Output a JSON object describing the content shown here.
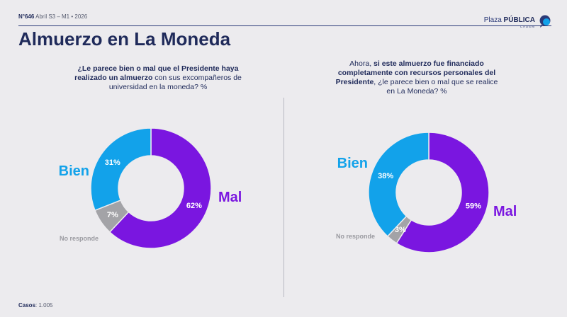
{
  "header": {
    "issue": "N°646",
    "period": "Abril S3 – M1 • 2026",
    "brand_plain": "Plaza",
    "brand_bold": "PÚBLICA",
    "brand_sub": "CADEM"
  },
  "title": "Almuerzo en La Moneda",
  "questions": [
    {
      "bold": "¿Le parece bien o mal que el Presidente haya realizado un almuerzo",
      "rest": " con sus excompañeros de universidad en la moneda? %"
    },
    {
      "intro": "Ahora, ",
      "bold": "si este almuerzo fue financiado completamente con recursos personales del Presidente",
      "rest": ", ¿le parece bien o mal que se realice en La Moneda? %"
    }
  ],
  "footer": {
    "label": "Casos",
    "value": ": 1.005"
  },
  "colors": {
    "Mal": "#7a16e0",
    "Bien": "#12a2ea",
    "No responde": "#a3a3a7"
  },
  "chart_data": [
    {
      "type": "pie",
      "categories": [
        "Mal",
        "No responde",
        "Bien"
      ],
      "values": [
        62,
        7,
        31
      ],
      "labels": [
        "62%",
        "7%",
        "31%"
      ]
    },
    {
      "type": "pie",
      "categories": [
        "Mal",
        "No responde",
        "Bien"
      ],
      "values": [
        59,
        3,
        38
      ],
      "labels": [
        "59%",
        "3%",
        "38%"
      ]
    }
  ]
}
